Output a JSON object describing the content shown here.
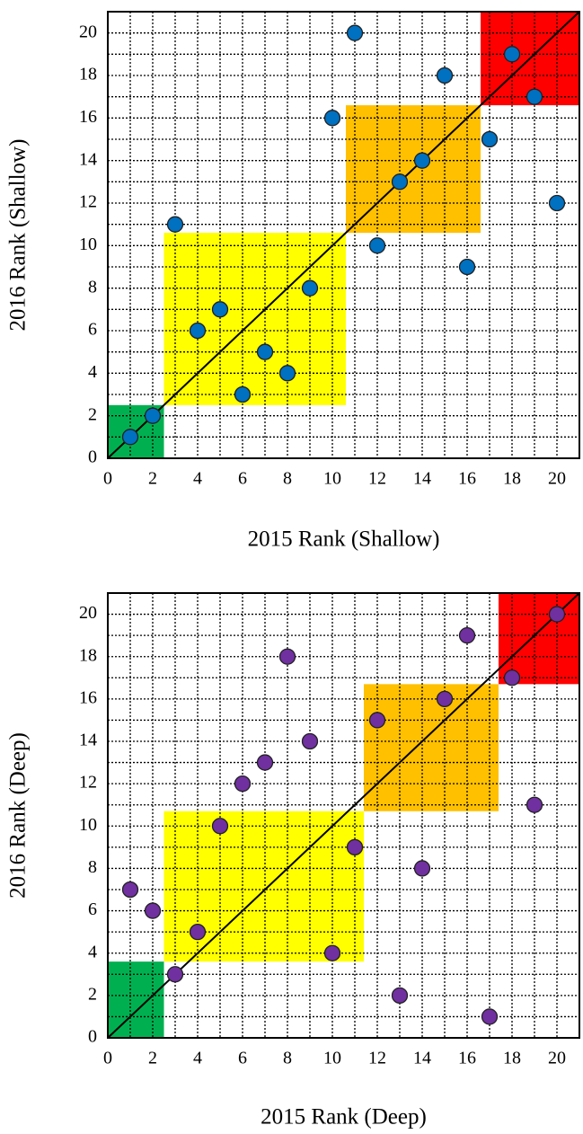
{
  "chart_data": [
    {
      "type": "scatter",
      "x_label": "2015 Rank (Shallow)",
      "y_label": "2016 Rank (Shallow)",
      "xlim": [
        0,
        21
      ],
      "ylim": [
        0,
        21
      ],
      "xticks": [
        0,
        2,
        4,
        6,
        8,
        10,
        12,
        14,
        16,
        18,
        20
      ],
      "yticks": [
        0,
        2,
        4,
        6,
        8,
        10,
        12,
        14,
        16,
        18,
        20
      ],
      "grid": true,
      "diagonal": true,
      "regions": [
        {
          "color": "#00b050",
          "x": [
            0,
            2.5
          ],
          "y": [
            0,
            2.5
          ]
        },
        {
          "color": "#ffff00",
          "x": [
            2.5,
            10.6
          ],
          "y": [
            2.5,
            10.6
          ]
        },
        {
          "color": "#ffc000",
          "x": [
            10.6,
            16.6
          ],
          "y": [
            10.6,
            16.6
          ]
        },
        {
          "color": "#ff0000",
          "x": [
            16.6,
            21
          ],
          "y": [
            16.6,
            21
          ]
        }
      ],
      "series": [
        {
          "color": "#0070c0",
          "x": [
            1,
            2,
            3,
            4,
            5,
            6,
            7,
            8,
            9,
            10,
            11,
            12,
            13,
            14,
            15,
            16,
            17,
            18,
            19,
            20
          ],
          "values": [
            1,
            2,
            11,
            6,
            7,
            3,
            5,
            4,
            8,
            16,
            20,
            10,
            13,
            14,
            18,
            9,
            15,
            19,
            17,
            12
          ]
        }
      ]
    },
    {
      "type": "scatter",
      "x_label": "2015 Rank (Deep)",
      "y_label": "2016 Rank (Deep)",
      "xlim": [
        0,
        21
      ],
      "ylim": [
        0,
        21
      ],
      "xticks": [
        0,
        2,
        4,
        6,
        8,
        10,
        12,
        14,
        16,
        18,
        20
      ],
      "yticks": [
        0,
        2,
        4,
        6,
        8,
        10,
        12,
        14,
        16,
        18,
        20
      ],
      "grid": true,
      "diagonal": true,
      "regions": [
        {
          "color": "#00b050",
          "x": [
            0,
            2.5
          ],
          "y": [
            0,
            3.6
          ]
        },
        {
          "color": "#ffff00",
          "x": [
            2.5,
            11.4
          ],
          "y": [
            3.6,
            10.7
          ]
        },
        {
          "color": "#ffc000",
          "x": [
            11.4,
            17.4
          ],
          "y": [
            10.7,
            16.7
          ]
        },
        {
          "color": "#ff0000",
          "x": [
            17.4,
            21
          ],
          "y": [
            16.7,
            21
          ]
        }
      ],
      "series": [
        {
          "color": "#7030a0",
          "x": [
            1,
            2,
            3,
            4,
            5,
            6,
            7,
            8,
            9,
            10,
            11,
            12,
            13,
            14,
            15,
            16,
            17,
            18,
            19,
            20
          ],
          "values": [
            7,
            6,
            3,
            5,
            10,
            12,
            13,
            18,
            14,
            4,
            9,
            15,
            2,
            8,
            16,
            19,
            1,
            17,
            11,
            20
          ]
        }
      ]
    }
  ]
}
